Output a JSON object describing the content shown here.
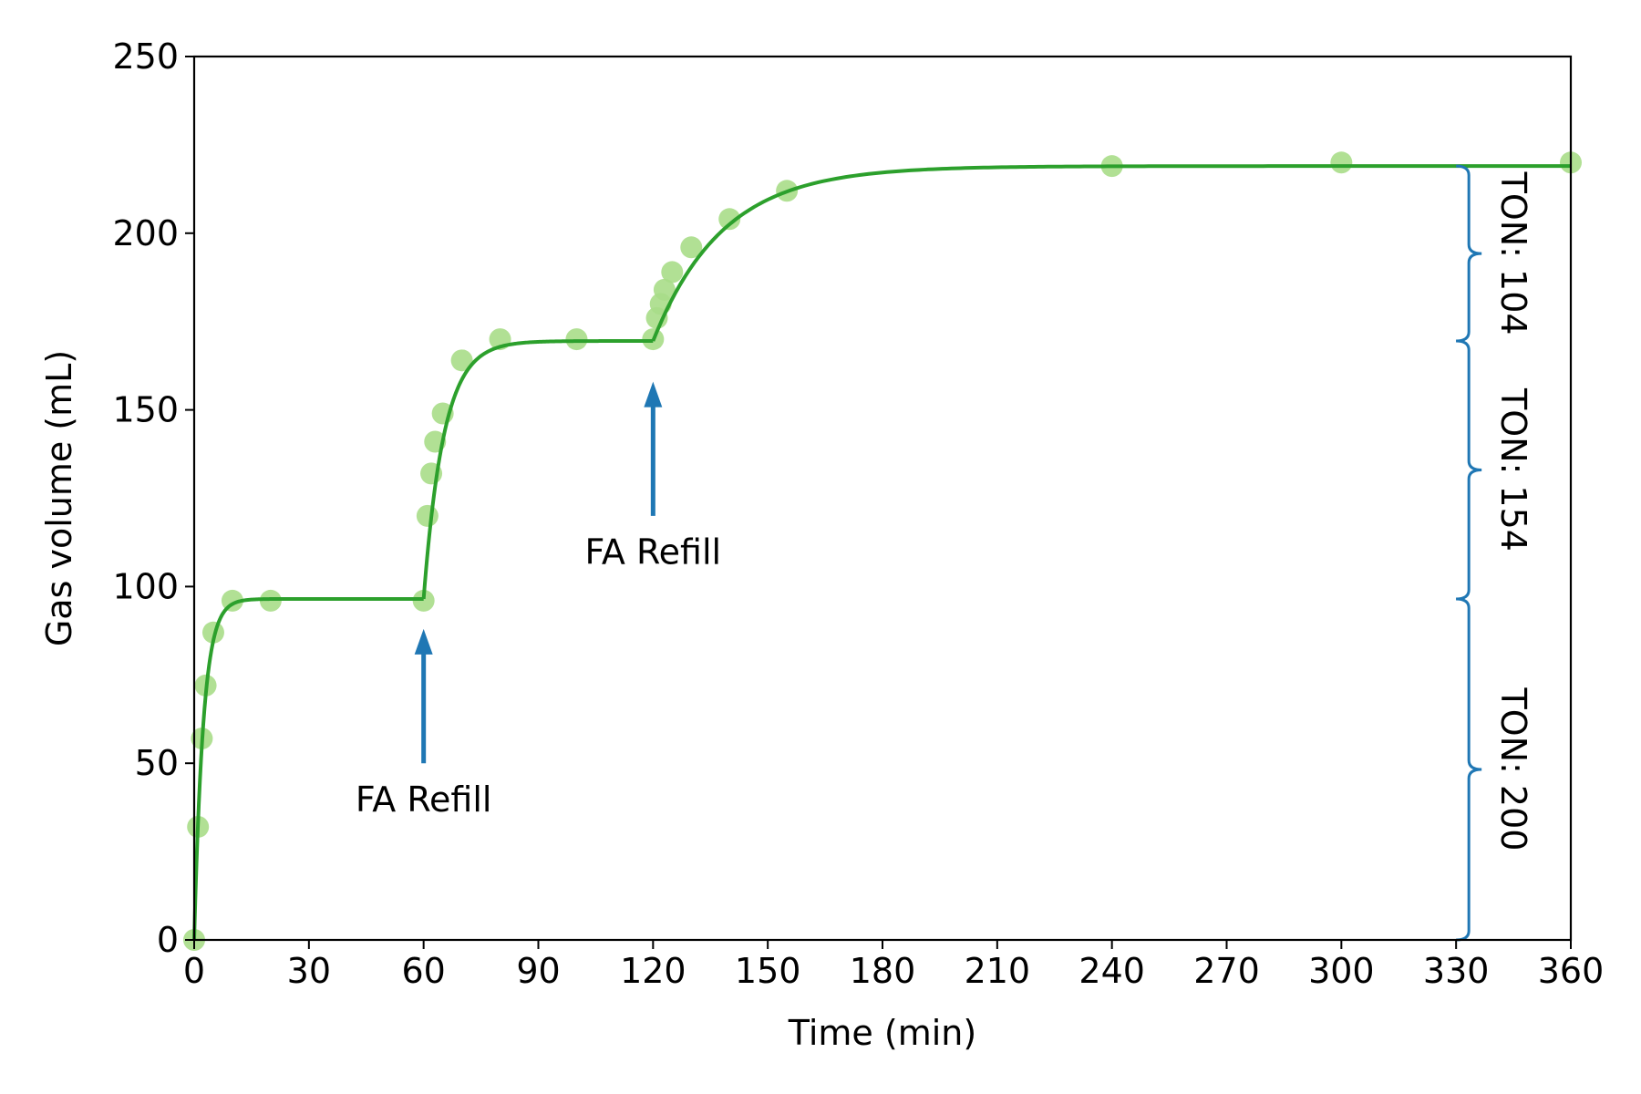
{
  "chart_data": {
    "type": "scatter",
    "title": "",
    "xlabel": "Time (min)",
    "ylabel": "Gas volume (mL)",
    "xlim": [
      0,
      360
    ],
    "ylim": [
      0,
      250
    ],
    "xticks": [
      0,
      30,
      60,
      90,
      120,
      150,
      180,
      210,
      240,
      270,
      300,
      330,
      360
    ],
    "yticks": [
      0,
      50,
      100,
      150,
      200,
      250
    ],
    "grid": false,
    "legend": "none",
    "colors": {
      "points": "#a8dd88",
      "fit": "#2ca02c",
      "annotation": "#1f77b4"
    },
    "series": [
      {
        "kind": "points",
        "x": [
          0,
          1,
          2,
          3,
          5,
          10,
          20,
          60,
          61,
          62,
          63,
          65,
          70,
          80,
          100,
          120,
          121,
          122,
          123,
          125,
          130,
          140,
          155,
          240,
          300,
          360
        ],
        "y": [
          0,
          32,
          57,
          72,
          87,
          96,
          96,
          96,
          120,
          132,
          141,
          149,
          164,
          170,
          170,
          170,
          176,
          180,
          184,
          189,
          196,
          204,
          212,
          219,
          220,
          220
        ]
      },
      {
        "kind": "fit-line",
        "segments": [
          {
            "x0": 0,
            "x1": 60,
            "y_start": 0,
            "y_end": 96.5,
            "k": 0.42
          },
          {
            "x0": 60,
            "x1": 120,
            "y_start": 96.5,
            "y_end": 169.5,
            "k": 0.19
          },
          {
            "x0": 120,
            "x1": 360,
            "y_start": 169.5,
            "y_end": 219,
            "k": 0.055
          }
        ]
      }
    ],
    "annotations": [
      {
        "text": "FA Refill",
        "x": 60,
        "arrow_from": 50,
        "arrow_to": 88,
        "text_y": 40
      },
      {
        "text": "FA Refill",
        "x": 120,
        "arrow_from": 120,
        "arrow_to": 158,
        "text_y": 110
      }
    ],
    "brackets": [
      {
        "text": "TON: 104",
        "x": 330,
        "y0": 169.5,
        "y1": 219
      },
      {
        "text": "TON: 154",
        "x": 330,
        "y0": 96.5,
        "y1": 169.5
      },
      {
        "text": "TON: 200",
        "x": 330,
        "y0": 0,
        "y1": 96.5
      }
    ]
  }
}
